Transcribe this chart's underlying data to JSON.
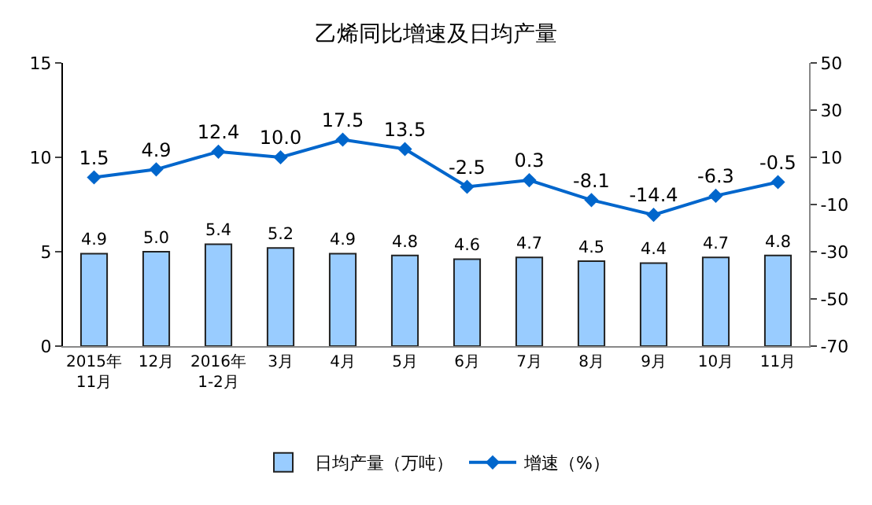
{
  "chart_data": {
    "type": "bar",
    "title": "乙烯同比增速及日均产量",
    "categories": [
      "2015年\n11月",
      "12月",
      "2016年\n1-2月",
      "3月",
      "4月",
      "5月",
      "6月",
      "7月",
      "8月",
      "9月",
      "10月",
      "11月"
    ],
    "series": [
      {
        "name": "日均产量（万吨）",
        "color": "#99ccff",
        "values": [
          4.9,
          5.0,
          5.4,
          5.2,
          4.9,
          4.8,
          4.6,
          4.7,
          4.5,
          4.4,
          4.7,
          4.8
        ],
        "value_labels": [
          "4.9",
          "5.0",
          "5.4",
          "5.2",
          "4.9",
          "4.8",
          "4.6",
          "4.7",
          "4.5",
          "4.4",
          "4.7",
          "4.8"
        ]
      },
      {
        "name": "增速（%）",
        "type": "line",
        "axis": "y2",
        "color": "#0066cc",
        "marker": "diamond",
        "values": [
          1.5,
          4.9,
          12.4,
          10.0,
          17.5,
          13.5,
          -2.5,
          0.3,
          -8.1,
          -14.4,
          -6.3,
          -0.5
        ],
        "value_labels": [
          "1.5",
          "4.9",
          "12.4",
          "10.0",
          "17.5",
          "13.5",
          "-2.5",
          "0.3",
          "-8.1",
          "-14.4",
          "-6.3",
          "-0.5"
        ]
      }
    ],
    "ylim": [
      0,
      15
    ],
    "yticks": [
      0,
      5,
      10,
      15
    ],
    "y2lim": [
      -70,
      50
    ],
    "y2ticks": [
      -70,
      -50,
      -30,
      -10,
      10,
      30,
      50
    ],
    "legend": "bottom"
  }
}
